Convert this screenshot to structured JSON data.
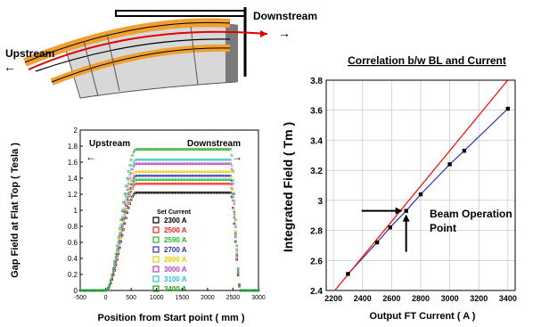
{
  "magnet": {
    "upstream_label": "Upstream",
    "downstream_label": "Downstream",
    "left_arrow": "←",
    "right_arrow": "→"
  },
  "chart_data": [
    {
      "type": "scatter",
      "title": "",
      "xlabel": "Position from Start point ( mm )",
      "ylabel": "Gap Field at Flat Top ( Tesla )",
      "xlim": [
        -500,
        3000
      ],
      "ylim": [
        0,
        2
      ],
      "xticks": [
        "-500",
        "0",
        "500",
        "1000",
        "1500",
        "2000",
        "2500",
        "3000"
      ],
      "yticks": [
        "0",
        "0.2",
        "0.4",
        "0.6",
        "0.8",
        "1",
        "1.2",
        "1.4",
        "1.6",
        "1.8",
        "2"
      ],
      "annotations": {
        "upstream": "Upstream",
        "downstream": "Downstream",
        "left_arrow": "←",
        "right_arrow": "→"
      },
      "legend_title": "Set Current",
      "legend_placement": "center",
      "series": [
        {
          "name": "2300 A",
          "color": "#000000",
          "flat_top": 1.22
        },
        {
          "name": "2500 A",
          "color": "#ff2020",
          "flat_top": 1.33
        },
        {
          "name": "2590 A",
          "color": "#22bb22",
          "flat_top": 1.38
        },
        {
          "name": "2700 A",
          "color": "#3030c0",
          "flat_top": 1.43
        },
        {
          "name": "2800 A",
          "color": "#e8d000",
          "flat_top": 1.48
        },
        {
          "name": "3000 A",
          "color": "#c040c0",
          "flat_top": 1.58
        },
        {
          "name": "3100 A",
          "color": "#30c0d0",
          "flat_top": 1.63
        },
        {
          "name": "3400 A",
          "color": "#20a020",
          "flat_top": 1.76
        }
      ],
      "profile": {
        "rise_start": 0,
        "rise_end": 600,
        "fall_start": 2450,
        "fall_end": 2650
      }
    },
    {
      "type": "line",
      "title": "Correlation b/w BL and Current",
      "xlabel": "Output FT Current ( A )",
      "ylabel": "Integrated Field ( Tm )",
      "xlim": [
        2150,
        3450
      ],
      "ylim": [
        2.4,
        3.8
      ],
      "xticks": [
        "2200",
        "2400",
        "2600",
        "2800",
        "3000",
        "3200",
        "3400"
      ],
      "yticks": [
        "2.4",
        "2.6",
        "2.8",
        "3",
        "3.2",
        "3.4",
        "3.6",
        "3.8"
      ],
      "grid": true,
      "points": {
        "x": [
          2300,
          2500,
          2590,
          2700,
          2800,
          3000,
          3100,
          3400
        ],
        "y": [
          2.51,
          2.72,
          2.82,
          2.93,
          3.04,
          3.24,
          3.33,
          3.61
        ]
      },
      "linear_fit": {
        "color": "#ff0000",
        "x": [
          2150,
          3450
        ],
        "y": [
          2.33,
          3.86
        ]
      },
      "measured_fit": {
        "color": "#3030c0"
      },
      "annotation": {
        "text_line1": "Beam Operation",
        "text_line2": "Point",
        "x": 2700,
        "y": 2.93
      }
    }
  ]
}
